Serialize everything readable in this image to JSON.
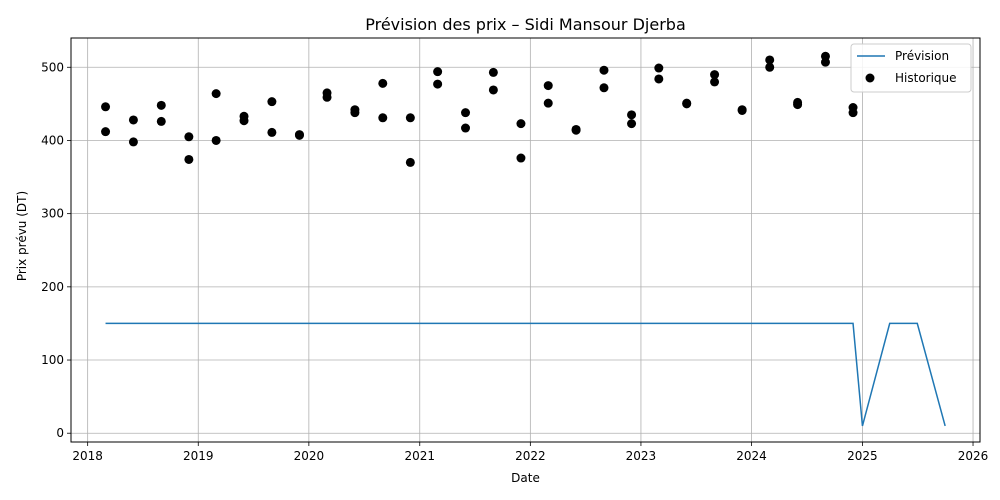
{
  "chart_data": {
    "type": "line",
    "title": "Prévision des prix – Sidi Mansour Djerba",
    "xlabel": "Date",
    "ylabel": "Prix prévu (DT)",
    "xlim": [
      "2017-11-07",
      "2026-01-24"
    ],
    "ylim": [
      -12,
      540
    ],
    "x_ticks": [
      "2018",
      "2019",
      "2020",
      "2021",
      "2022",
      "2023",
      "2024",
      "2025",
      "2026"
    ],
    "y_ticks": [
      0,
      100,
      200,
      300,
      400,
      500
    ],
    "grid": true,
    "legend_position": "top-right",
    "colors": {
      "forecast": "#1f77b4",
      "history": "#000000",
      "grid": "#b0b0b0"
    },
    "series": [
      {
        "name": "Prévision",
        "kind": "line",
        "points": [
          {
            "x": "2018-03-01",
            "y": 150
          },
          {
            "x": "2024-12-01",
            "y": 150
          },
          {
            "x": "2025-01-01",
            "y": 10
          },
          {
            "x": "2025-04-01",
            "y": 150
          },
          {
            "x": "2025-07-01",
            "y": 150
          },
          {
            "x": "2025-10-01",
            "y": 10
          }
        ]
      },
      {
        "name": "Historique",
        "kind": "scatter",
        "points": [
          {
            "x": "2018-03-01",
            "y": 446
          },
          {
            "x": "2018-03-01",
            "y": 412
          },
          {
            "x": "2018-06-01",
            "y": 428
          },
          {
            "x": "2018-06-01",
            "y": 398
          },
          {
            "x": "2018-09-01",
            "y": 448
          },
          {
            "x": "2018-09-01",
            "y": 426
          },
          {
            "x": "2018-12-01",
            "y": 405
          },
          {
            "x": "2018-12-01",
            "y": 374
          },
          {
            "x": "2019-03-01",
            "y": 464
          },
          {
            "x": "2019-03-01",
            "y": 400
          },
          {
            "x": "2019-06-01",
            "y": 433
          },
          {
            "x": "2019-06-01",
            "y": 427
          },
          {
            "x": "2019-09-01",
            "y": 453
          },
          {
            "x": "2019-09-01",
            "y": 411
          },
          {
            "x": "2019-12-01",
            "y": 408
          },
          {
            "x": "2019-12-01",
            "y": 407
          },
          {
            "x": "2020-03-01",
            "y": 465
          },
          {
            "x": "2020-03-01",
            "y": 459
          },
          {
            "x": "2020-06-01",
            "y": 442
          },
          {
            "x": "2020-06-01",
            "y": 438
          },
          {
            "x": "2020-09-01",
            "y": 478
          },
          {
            "x": "2020-09-01",
            "y": 431
          },
          {
            "x": "2020-12-01",
            "y": 431
          },
          {
            "x": "2020-12-01",
            "y": 370
          },
          {
            "x": "2021-03-01",
            "y": 494
          },
          {
            "x": "2021-03-01",
            "y": 477
          },
          {
            "x": "2021-06-01",
            "y": 438
          },
          {
            "x": "2021-06-01",
            "y": 417
          },
          {
            "x": "2021-09-01",
            "y": 493
          },
          {
            "x": "2021-09-01",
            "y": 469
          },
          {
            "x": "2021-12-01",
            "y": 423
          },
          {
            "x": "2021-12-01",
            "y": 376
          },
          {
            "x": "2022-03-01",
            "y": 475
          },
          {
            "x": "2022-03-01",
            "y": 451
          },
          {
            "x": "2022-06-01",
            "y": 415
          },
          {
            "x": "2022-06-01",
            "y": 414
          },
          {
            "x": "2022-09-01",
            "y": 496
          },
          {
            "x": "2022-09-01",
            "y": 472
          },
          {
            "x": "2022-12-01",
            "y": 435
          },
          {
            "x": "2022-12-01",
            "y": 423
          },
          {
            "x": "2023-03-01",
            "y": 499
          },
          {
            "x": "2023-03-01",
            "y": 484
          },
          {
            "x": "2023-06-01",
            "y": 451
          },
          {
            "x": "2023-06-01",
            "y": 450
          },
          {
            "x": "2023-09-01",
            "y": 490
          },
          {
            "x": "2023-09-01",
            "y": 480
          },
          {
            "x": "2023-12-01",
            "y": 442
          },
          {
            "x": "2023-12-01",
            "y": 441
          },
          {
            "x": "2024-03-01",
            "y": 510
          },
          {
            "x": "2024-03-01",
            "y": 500
          },
          {
            "x": "2024-06-01",
            "y": 452
          },
          {
            "x": "2024-06-01",
            "y": 449
          },
          {
            "x": "2024-09-01",
            "y": 515
          },
          {
            "x": "2024-09-01",
            "y": 507
          },
          {
            "x": "2024-12-01",
            "y": 445
          },
          {
            "x": "2024-12-01",
            "y": 438
          }
        ]
      }
    ]
  }
}
